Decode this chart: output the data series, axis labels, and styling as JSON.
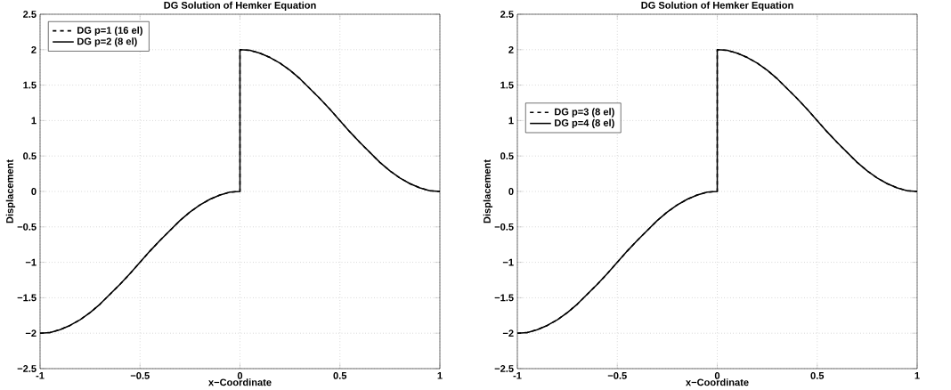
{
  "chart_data": [
    {
      "type": "line",
      "title": "DG Solution of Hemker Equation",
      "xlabel": "x−Coordinate",
      "ylabel": "Displacement",
      "x": [
        -1,
        -0.95,
        -0.9,
        -0.85,
        -0.8,
        -0.75,
        -0.7,
        -0.65,
        -0.6,
        -0.55,
        -0.5,
        -0.45,
        -0.4,
        -0.35,
        -0.3,
        -0.25,
        -0.2,
        -0.15,
        -0.1,
        -0.05,
        0,
        0,
        0.05,
        0.1,
        0.15,
        0.2,
        0.25,
        0.3,
        0.35,
        0.4,
        0.45,
        0.5,
        0.55,
        0.6,
        0.65,
        0.7,
        0.75,
        0.8,
        0.85,
        0.9,
        0.95,
        1
      ],
      "series": [
        {
          "name": "DG p=1 (16 el)",
          "color": "#000000",
          "line_style": "dashed",
          "values": [
            -2,
            -1.99,
            -1.95,
            -1.89,
            -1.81,
            -1.71,
            -1.59,
            -1.45,
            -1.31,
            -1.16,
            -1,
            -0.84,
            -0.69,
            -0.55,
            -0.41,
            -0.29,
            -0.19,
            -0.11,
            -0.05,
            -0.01,
            0,
            2,
            1.99,
            1.95,
            1.89,
            1.81,
            1.71,
            1.59,
            1.45,
            1.31,
            1.16,
            1,
            0.84,
            0.69,
            0.55,
            0.41,
            0.29,
            0.19,
            0.11,
            0.05,
            0.01,
            0
          ]
        },
        {
          "name": "DG p=2 (8 el)",
          "color": "#000000",
          "line_style": "solid",
          "values": [
            -2,
            -1.99,
            -1.95,
            -1.89,
            -1.81,
            -1.71,
            -1.59,
            -1.45,
            -1.31,
            -1.16,
            -1,
            -0.84,
            -0.69,
            -0.55,
            -0.41,
            -0.29,
            -0.19,
            -0.11,
            -0.05,
            -0.01,
            0,
            2,
            1.99,
            1.95,
            1.89,
            1.81,
            1.71,
            1.59,
            1.45,
            1.31,
            1.16,
            1,
            0.84,
            0.69,
            0.55,
            0.41,
            0.29,
            0.19,
            0.11,
            0.05,
            0.01,
            0
          ]
        }
      ],
      "xlim": [
        -1,
        1
      ],
      "ylim": [
        -2.5,
        2.5
      ],
      "xticks": [
        -1,
        {
          "value": -0.5,
          "label": "−0.5"
        },
        0,
        0.5,
        1
      ],
      "yticks": [
        {
          "value": -2.5,
          "label": "−2.5"
        },
        {
          "value": -2,
          "label": "−2"
        },
        {
          "value": -1.5,
          "label": "−1.5"
        },
        {
          "value": -1,
          "label": "−1"
        },
        {
          "value": -0.5,
          "label": "−0.5"
        },
        0,
        0.5,
        1,
        1.5,
        2,
        2.5
      ],
      "grid": true,
      "legend": "top left"
    },
    {
      "type": "line",
      "title": "DG Solution of Hemker Equation",
      "xlabel": "x−Coordinate",
      "ylabel": "Displacement",
      "x": [
        -1,
        -0.95,
        -0.9,
        -0.85,
        -0.8,
        -0.75,
        -0.7,
        -0.65,
        -0.6,
        -0.55,
        -0.5,
        -0.45,
        -0.4,
        -0.35,
        -0.3,
        -0.25,
        -0.2,
        -0.15,
        -0.1,
        -0.05,
        0,
        0,
        0.05,
        0.1,
        0.15,
        0.2,
        0.25,
        0.3,
        0.35,
        0.4,
        0.45,
        0.5,
        0.55,
        0.6,
        0.65,
        0.7,
        0.75,
        0.8,
        0.85,
        0.9,
        0.95,
        1
      ],
      "series": [
        {
          "name": "DG p=3 (8 el)",
          "color": "#000000",
          "line_style": "dashed",
          "values": [
            -2,
            -1.99,
            -1.95,
            -1.89,
            -1.81,
            -1.71,
            -1.59,
            -1.45,
            -1.31,
            -1.16,
            -1,
            -0.84,
            -0.69,
            -0.55,
            -0.41,
            -0.29,
            -0.19,
            -0.11,
            -0.05,
            -0.01,
            0,
            2,
            1.99,
            1.95,
            1.89,
            1.81,
            1.71,
            1.59,
            1.45,
            1.31,
            1.16,
            1,
            0.84,
            0.69,
            0.55,
            0.41,
            0.29,
            0.19,
            0.11,
            0.05,
            0.01,
            0
          ]
        },
        {
          "name": "DG p=4 (8 el)",
          "color": "#000000",
          "line_style": "solid",
          "values": [
            -2,
            -1.99,
            -1.95,
            -1.89,
            -1.81,
            -1.71,
            -1.59,
            -1.45,
            -1.31,
            -1.16,
            -1,
            -0.84,
            -0.69,
            -0.55,
            -0.41,
            -0.29,
            -0.19,
            -0.11,
            -0.05,
            -0.01,
            0,
            2,
            1.99,
            1.95,
            1.89,
            1.81,
            1.71,
            1.59,
            1.45,
            1.31,
            1.16,
            1,
            0.84,
            0.69,
            0.55,
            0.41,
            0.29,
            0.19,
            0.11,
            0.05,
            0.01,
            0
          ]
        }
      ],
      "xlim": [
        -1,
        1
      ],
      "ylim": [
        -2.5,
        2.5
      ],
      "xticks": [
        -1,
        {
          "value": -0.5,
          "label": "−0.5"
        },
        0,
        0.5,
        1
      ],
      "yticks": [
        {
          "value": -2.5,
          "label": "−2.5"
        },
        {
          "value": -2,
          "label": "−2"
        },
        {
          "value": -1.5,
          "label": "−1.5"
        },
        {
          "value": -1,
          "label": "−1"
        },
        {
          "value": -0.5,
          "label": "−0.5"
        },
        0,
        0.5,
        1,
        1.5,
        2,
        2.5
      ],
      "grid": true,
      "legend": "left"
    }
  ]
}
